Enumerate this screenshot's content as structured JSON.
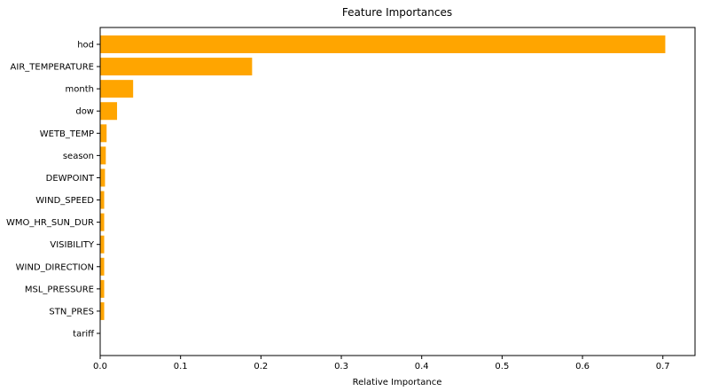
{
  "chart_data": {
    "type": "bar",
    "orientation": "horizontal",
    "title": "Feature Importances",
    "xlabel": "Relative Importance",
    "ylabel": "",
    "categories": [
      "hod",
      "AIR_TEMPERATURE",
      "month",
      "dow",
      "WETB_TEMP",
      "season",
      "DEWPOINT",
      "WIND_SPEED",
      "WMO_HR_SUN_DUR",
      "VISIBILITY",
      "WIND_DIRECTION",
      "MSL_PRESSURE",
      "STN_PRES",
      "tariff"
    ],
    "values": [
      0.703,
      0.189,
      0.041,
      0.021,
      0.008,
      0.007,
      0.006,
      0.005,
      0.005,
      0.005,
      0.005,
      0.005,
      0.005,
      0.0
    ],
    "xlim": [
      0,
      0.74
    ],
    "xticks": [
      0.0,
      0.1,
      0.2,
      0.3,
      0.4,
      0.5,
      0.6,
      0.7
    ],
    "xtick_labels": [
      "0.0",
      "0.1",
      "0.2",
      "0.3",
      "0.4",
      "0.5",
      "0.6",
      "0.7"
    ],
    "grid": false,
    "legend": "none",
    "bar_color": "#FFA500",
    "axis_color": "#000000"
  }
}
